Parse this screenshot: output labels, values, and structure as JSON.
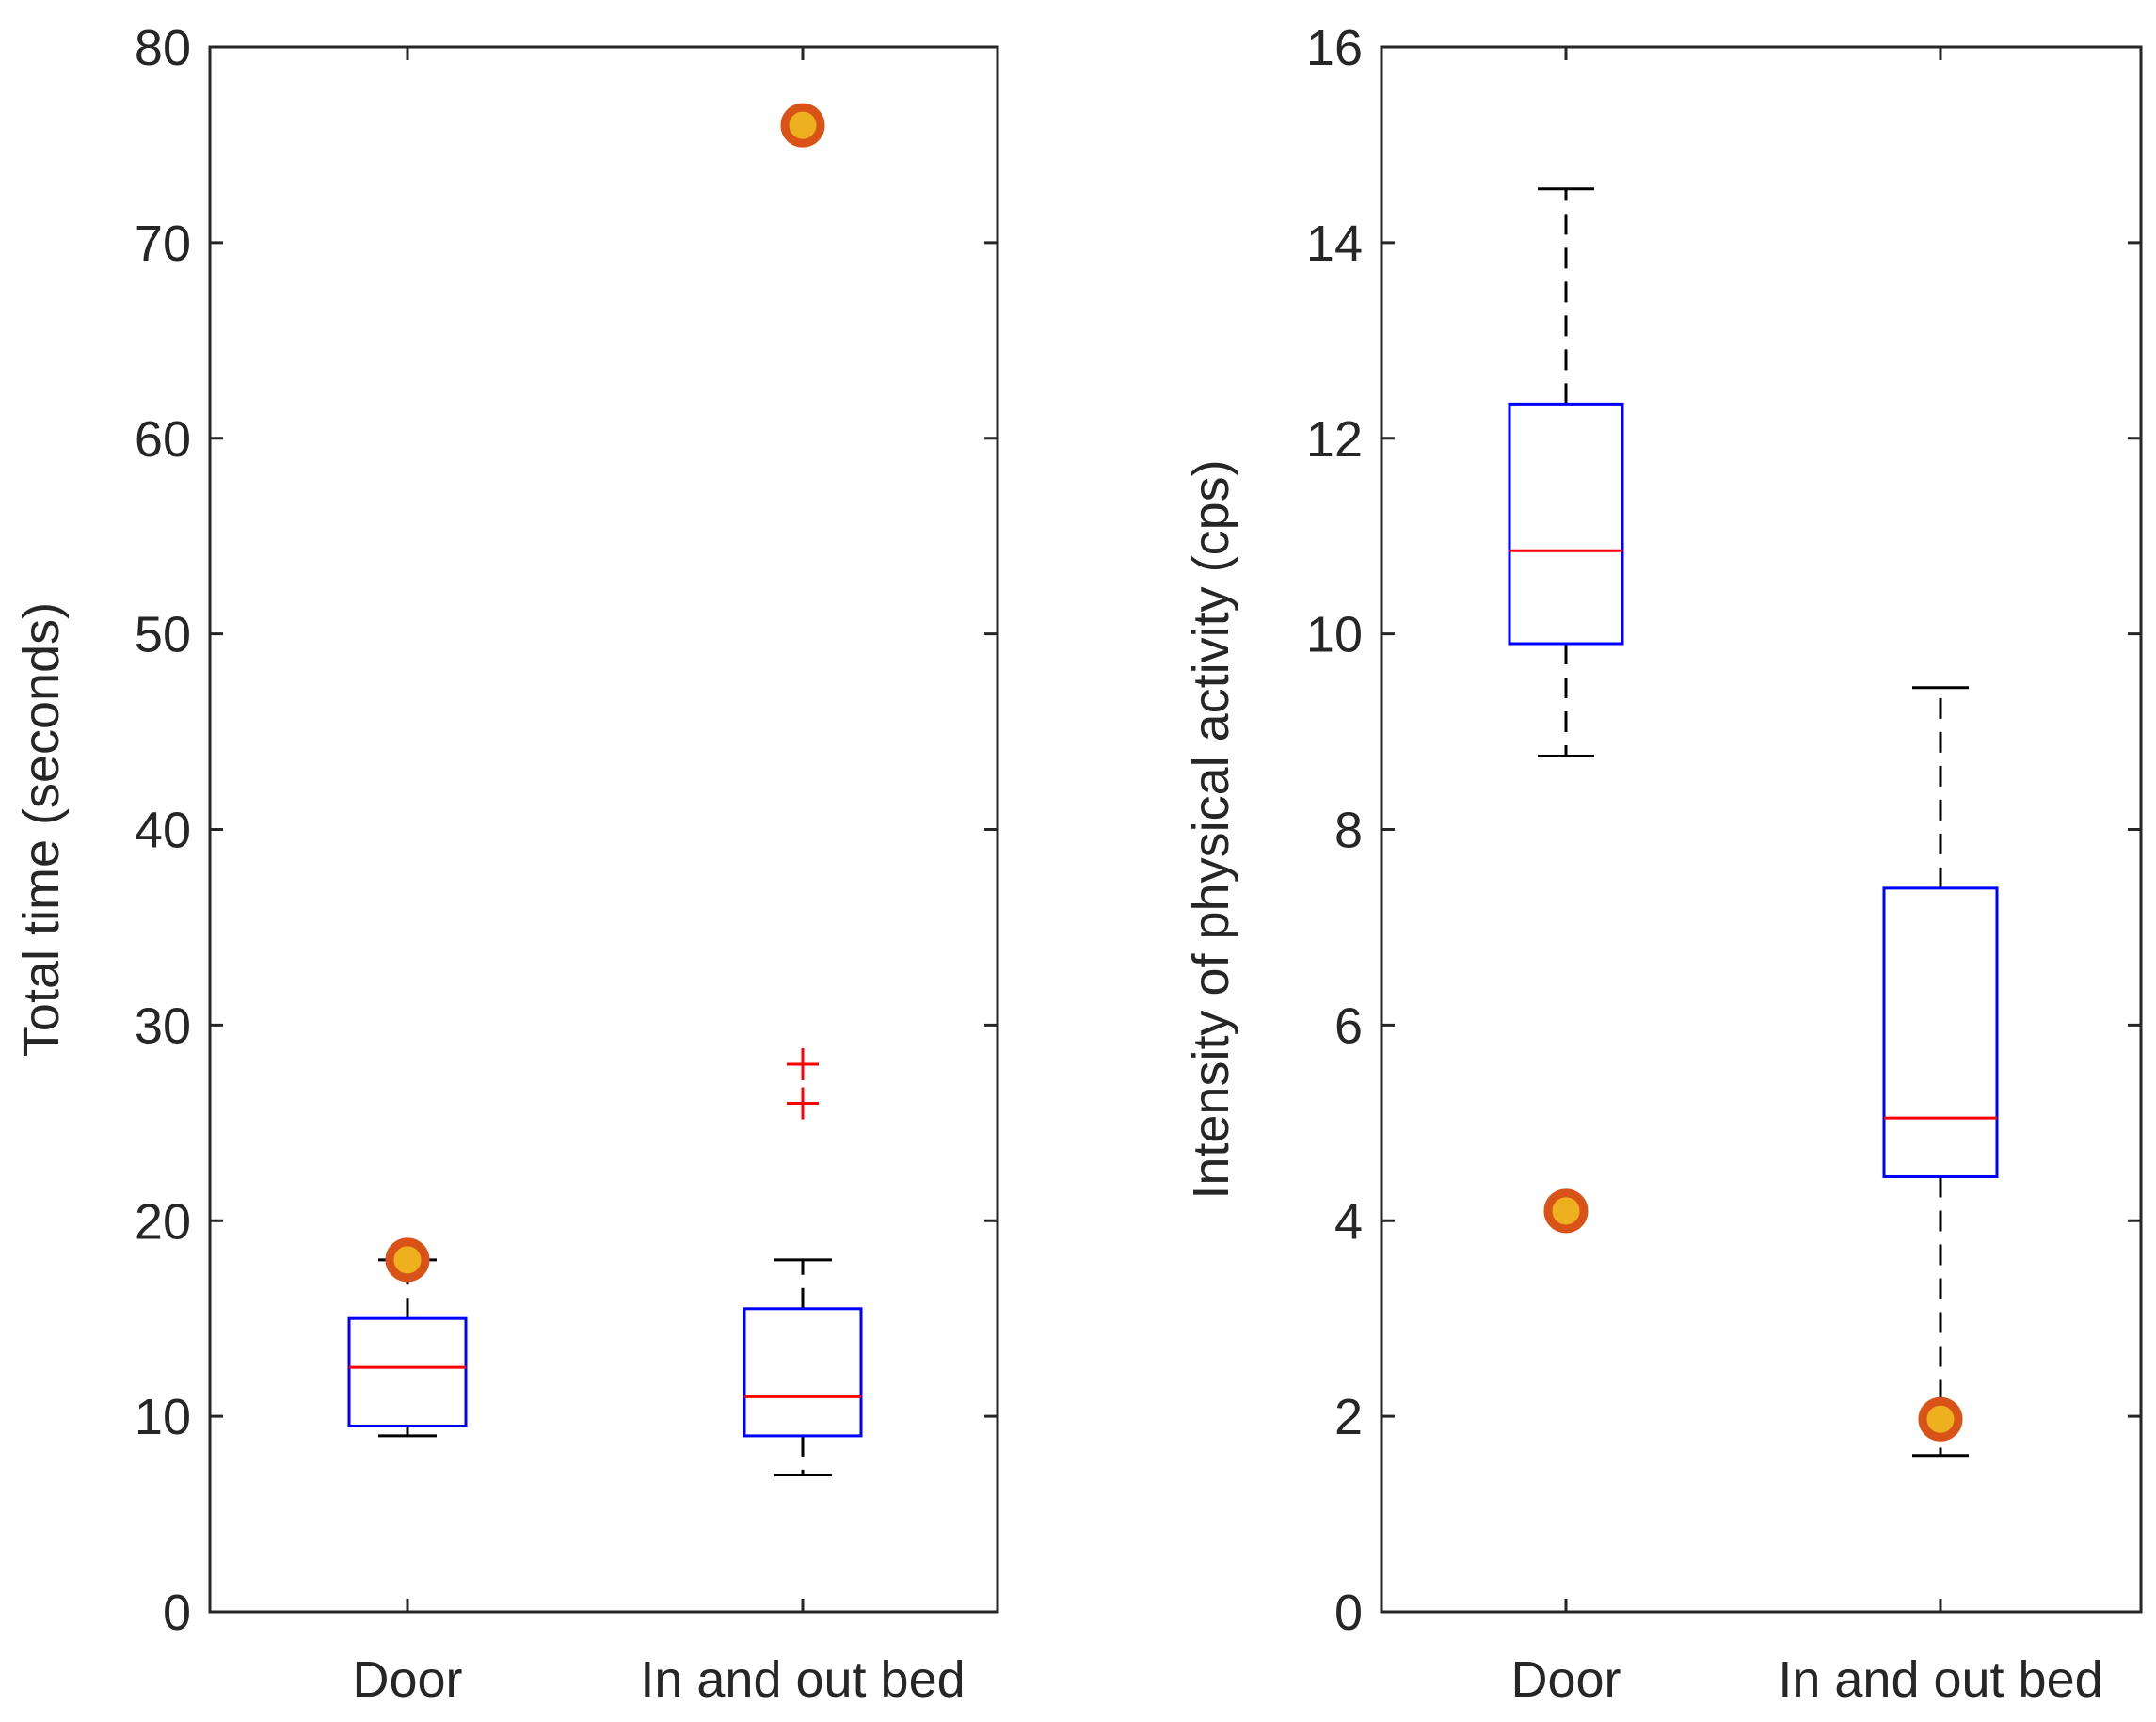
{
  "chart_data": [
    {
      "type": "boxplot",
      "title": "",
      "xlabel": "",
      "ylabel": "Total time (seconds)",
      "ylim": [
        0,
        80
      ],
      "yticks": [
        0,
        10,
        20,
        30,
        40,
        50,
        60,
        70,
        80
      ],
      "ytick_labels": [
        "0",
        "10",
        "20",
        "30",
        "40",
        "50",
        "60",
        "70",
        "80"
      ],
      "categories": [
        "Door",
        "In and out bed"
      ],
      "boxes": [
        {
          "q1": 9.5,
          "median": 12.5,
          "q3": 15,
          "whisker_low": 9,
          "whisker_high": 18,
          "outliers": []
        },
        {
          "q1": 9,
          "median": 11,
          "q3": 15.5,
          "whisker_low": 7,
          "whisker_high": 18,
          "outliers": [
            26,
            28
          ]
        }
      ],
      "highlighted_points": [
        {
          "category": "Door",
          "value": 18
        },
        {
          "category": "In and out bed",
          "value": 76
        }
      ],
      "colors": {
        "box": "#0000ff",
        "median": "#ff0000",
        "whisker": "#000000",
        "outlier": "#ff0000",
        "marker_edge": "#d95319",
        "marker_fill": "#edb120"
      }
    },
    {
      "type": "boxplot",
      "title": "",
      "xlabel": "",
      "ylabel": "Intensity of physical activity (cps)",
      "ylim": [
        0,
        16
      ],
      "yticks": [
        0,
        2,
        4,
        6,
        8,
        10,
        12,
        14,
        16
      ],
      "ytick_labels": [
        "0",
        "2",
        "4",
        "6",
        "8",
        "10",
        "12",
        "14",
        "16"
      ],
      "categories": [
        "Door",
        "In and out bed"
      ],
      "boxes": [
        {
          "q1": 9.9,
          "median": 10.85,
          "q3": 12.35,
          "whisker_low": 8.75,
          "whisker_high": 14.55,
          "outliers": []
        },
        {
          "q1": 4.45,
          "median": 5.05,
          "q3": 7.4,
          "whisker_low": 1.6,
          "whisker_high": 9.45,
          "outliers": []
        }
      ],
      "highlighted_points": [
        {
          "category": "Door",
          "value": 4.1
        },
        {
          "category": "In and out bed",
          "value": 1.97
        }
      ],
      "colors": {
        "box": "#0000ff",
        "median": "#ff0000",
        "whisker": "#000000",
        "outlier": "#ff0000",
        "marker_edge": "#d95319",
        "marker_fill": "#edb120"
      }
    }
  ]
}
